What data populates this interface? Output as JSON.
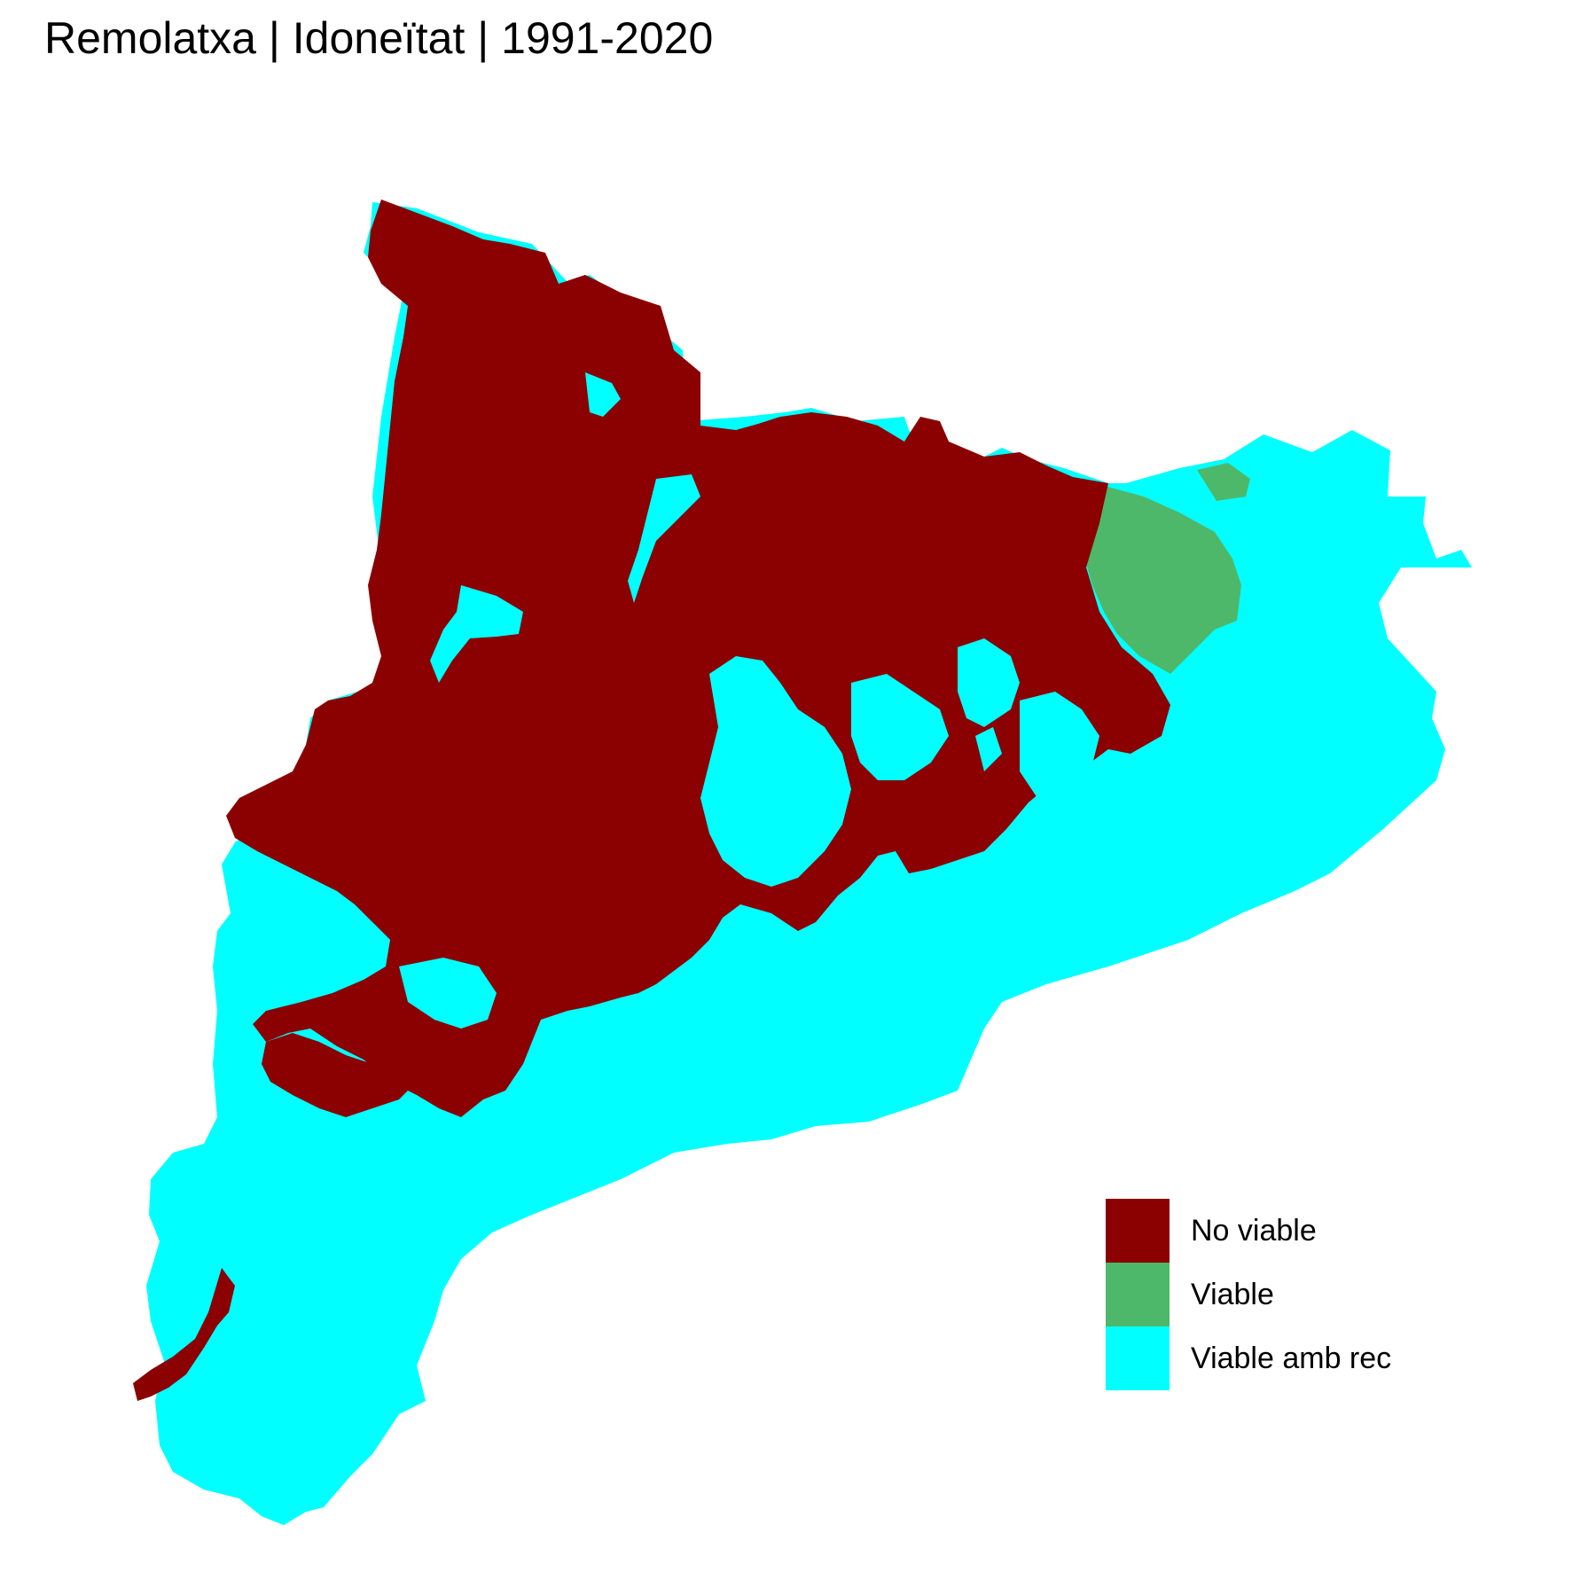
{
  "title": "Remolatxa | Idoneïtat | 1991-2020",
  "legend": {
    "items": [
      {
        "label": "No viable",
        "color": "#8B0000"
      },
      {
        "label": "Viable",
        "color": "#4DB86A"
      },
      {
        "label": "Viable amb rec",
        "color": "#00FFFF"
      }
    ]
  }
}
